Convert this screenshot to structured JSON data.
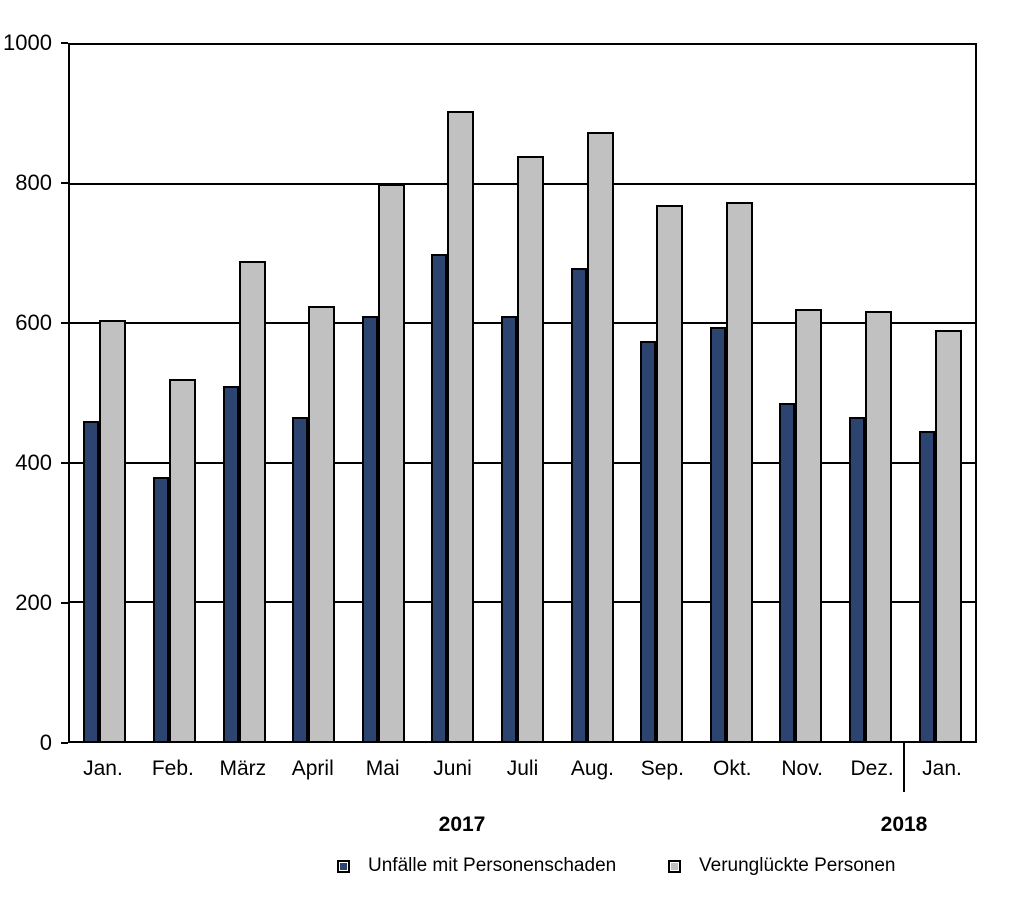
{
  "chart_data": {
    "type": "bar",
    "title": "",
    "xlabel": "",
    "ylabel": "",
    "categories": [
      "Jan.",
      "Feb.",
      "März",
      "April",
      "Mai",
      "Juni",
      "Juli",
      "Aug.",
      "Sep.",
      "Okt.",
      "Nov.",
      "Dez.",
      "Jan."
    ],
    "year_groups": [
      {
        "label": "2017",
        "span_months": 12
      },
      {
        "label": "2018",
        "span_months": 1
      }
    ],
    "series": [
      {
        "name": "Unfälle mit Personenschaden",
        "color": "#2E4470",
        "values": [
          460,
          380,
          510,
          465,
          610,
          700,
          610,
          680,
          575,
          595,
          485,
          465,
          445
        ]
      },
      {
        "name": "Verunglückte Personen",
        "color": "#C1C1C1",
        "values": [
          605,
          520,
          690,
          625,
          800,
          905,
          840,
          875,
          770,
          775,
          620,
          618,
          590
        ]
      }
    ],
    "ylim": [
      0,
      1000
    ],
    "y_ticks": [
      0,
      200,
      400,
      600,
      800,
      1000
    ],
    "grid": "horizontal",
    "legend_position": "bottom",
    "bar_border_color": "#000000",
    "axis_color": "#000000",
    "background_color": "#FFFFFF"
  }
}
